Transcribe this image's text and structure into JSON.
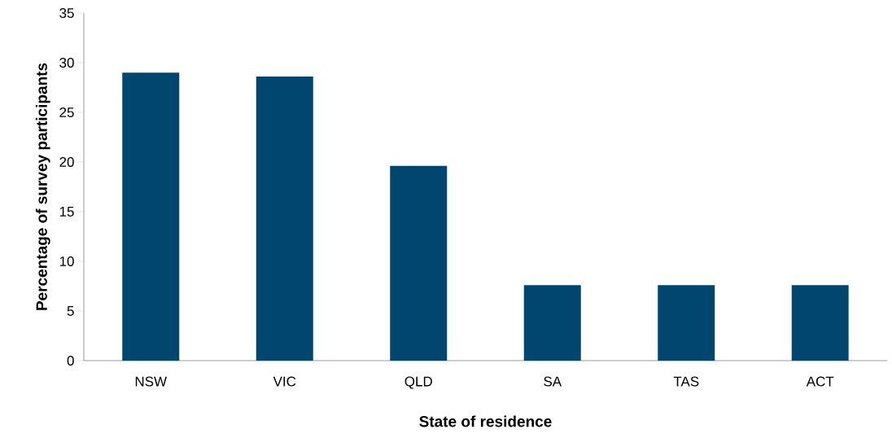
{
  "chart_data": {
    "type": "bar",
    "xlabel": "State of residence",
    "ylabel": "Percentage of survey participants",
    "categories": [
      "NSW",
      "VIC",
      "QLD",
      "SA",
      "TAS",
      "ACT"
    ],
    "values": [
      29.0,
      28.6,
      19.6,
      7.6,
      7.6,
      7.6
    ],
    "color": "#00466e",
    "ylim": [
      0,
      35
    ],
    "yticks": [
      0,
      5,
      10,
      15,
      20,
      25,
      30,
      35
    ]
  }
}
